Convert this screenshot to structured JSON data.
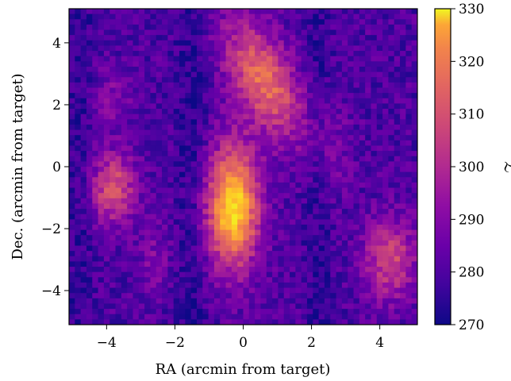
{
  "chart_data": {
    "type": "heatmap",
    "title": "",
    "xlabel": "RA (arcmin from target)",
    "ylabel": "Dec. (arcmin from target)",
    "xlim": [
      -5.1,
      5.1
    ],
    "ylim": [
      -5.1,
      5.1
    ],
    "xticks": [
      -4,
      -2,
      0,
      2,
      4
    ],
    "yticks": [
      -4,
      -2,
      0,
      2,
      4
    ],
    "xtick_labels": [
      "−4",
      "−2",
      "0",
      "2",
      "4"
    ],
    "ytick_labels": [
      "−4",
      "−2",
      "0",
      "2",
      "4"
    ],
    "colorbar": {
      "label": "ℒ",
      "range": [
        270,
        330
      ],
      "ticks": [
        270,
        280,
        290,
        300,
        310,
        320,
        330
      ],
      "tick_labels": [
        "270",
        "280",
        "290",
        "300",
        "310",
        "320",
        "330"
      ],
      "colormap": "plasma"
    },
    "grid_resolution": [
      60,
      60
    ],
    "features": [
      {
        "ra": -0.3,
        "dec": -1.3,
        "peak": 328
      },
      {
        "ra": 0.6,
        "dec": 2.8,
        "peak": 312
      },
      {
        "ra": -3.8,
        "dec": -0.7,
        "peak": 306
      },
      {
        "ra": 4.3,
        "dec": -3.0,
        "peak": 303
      }
    ],
    "grid": false
  }
}
